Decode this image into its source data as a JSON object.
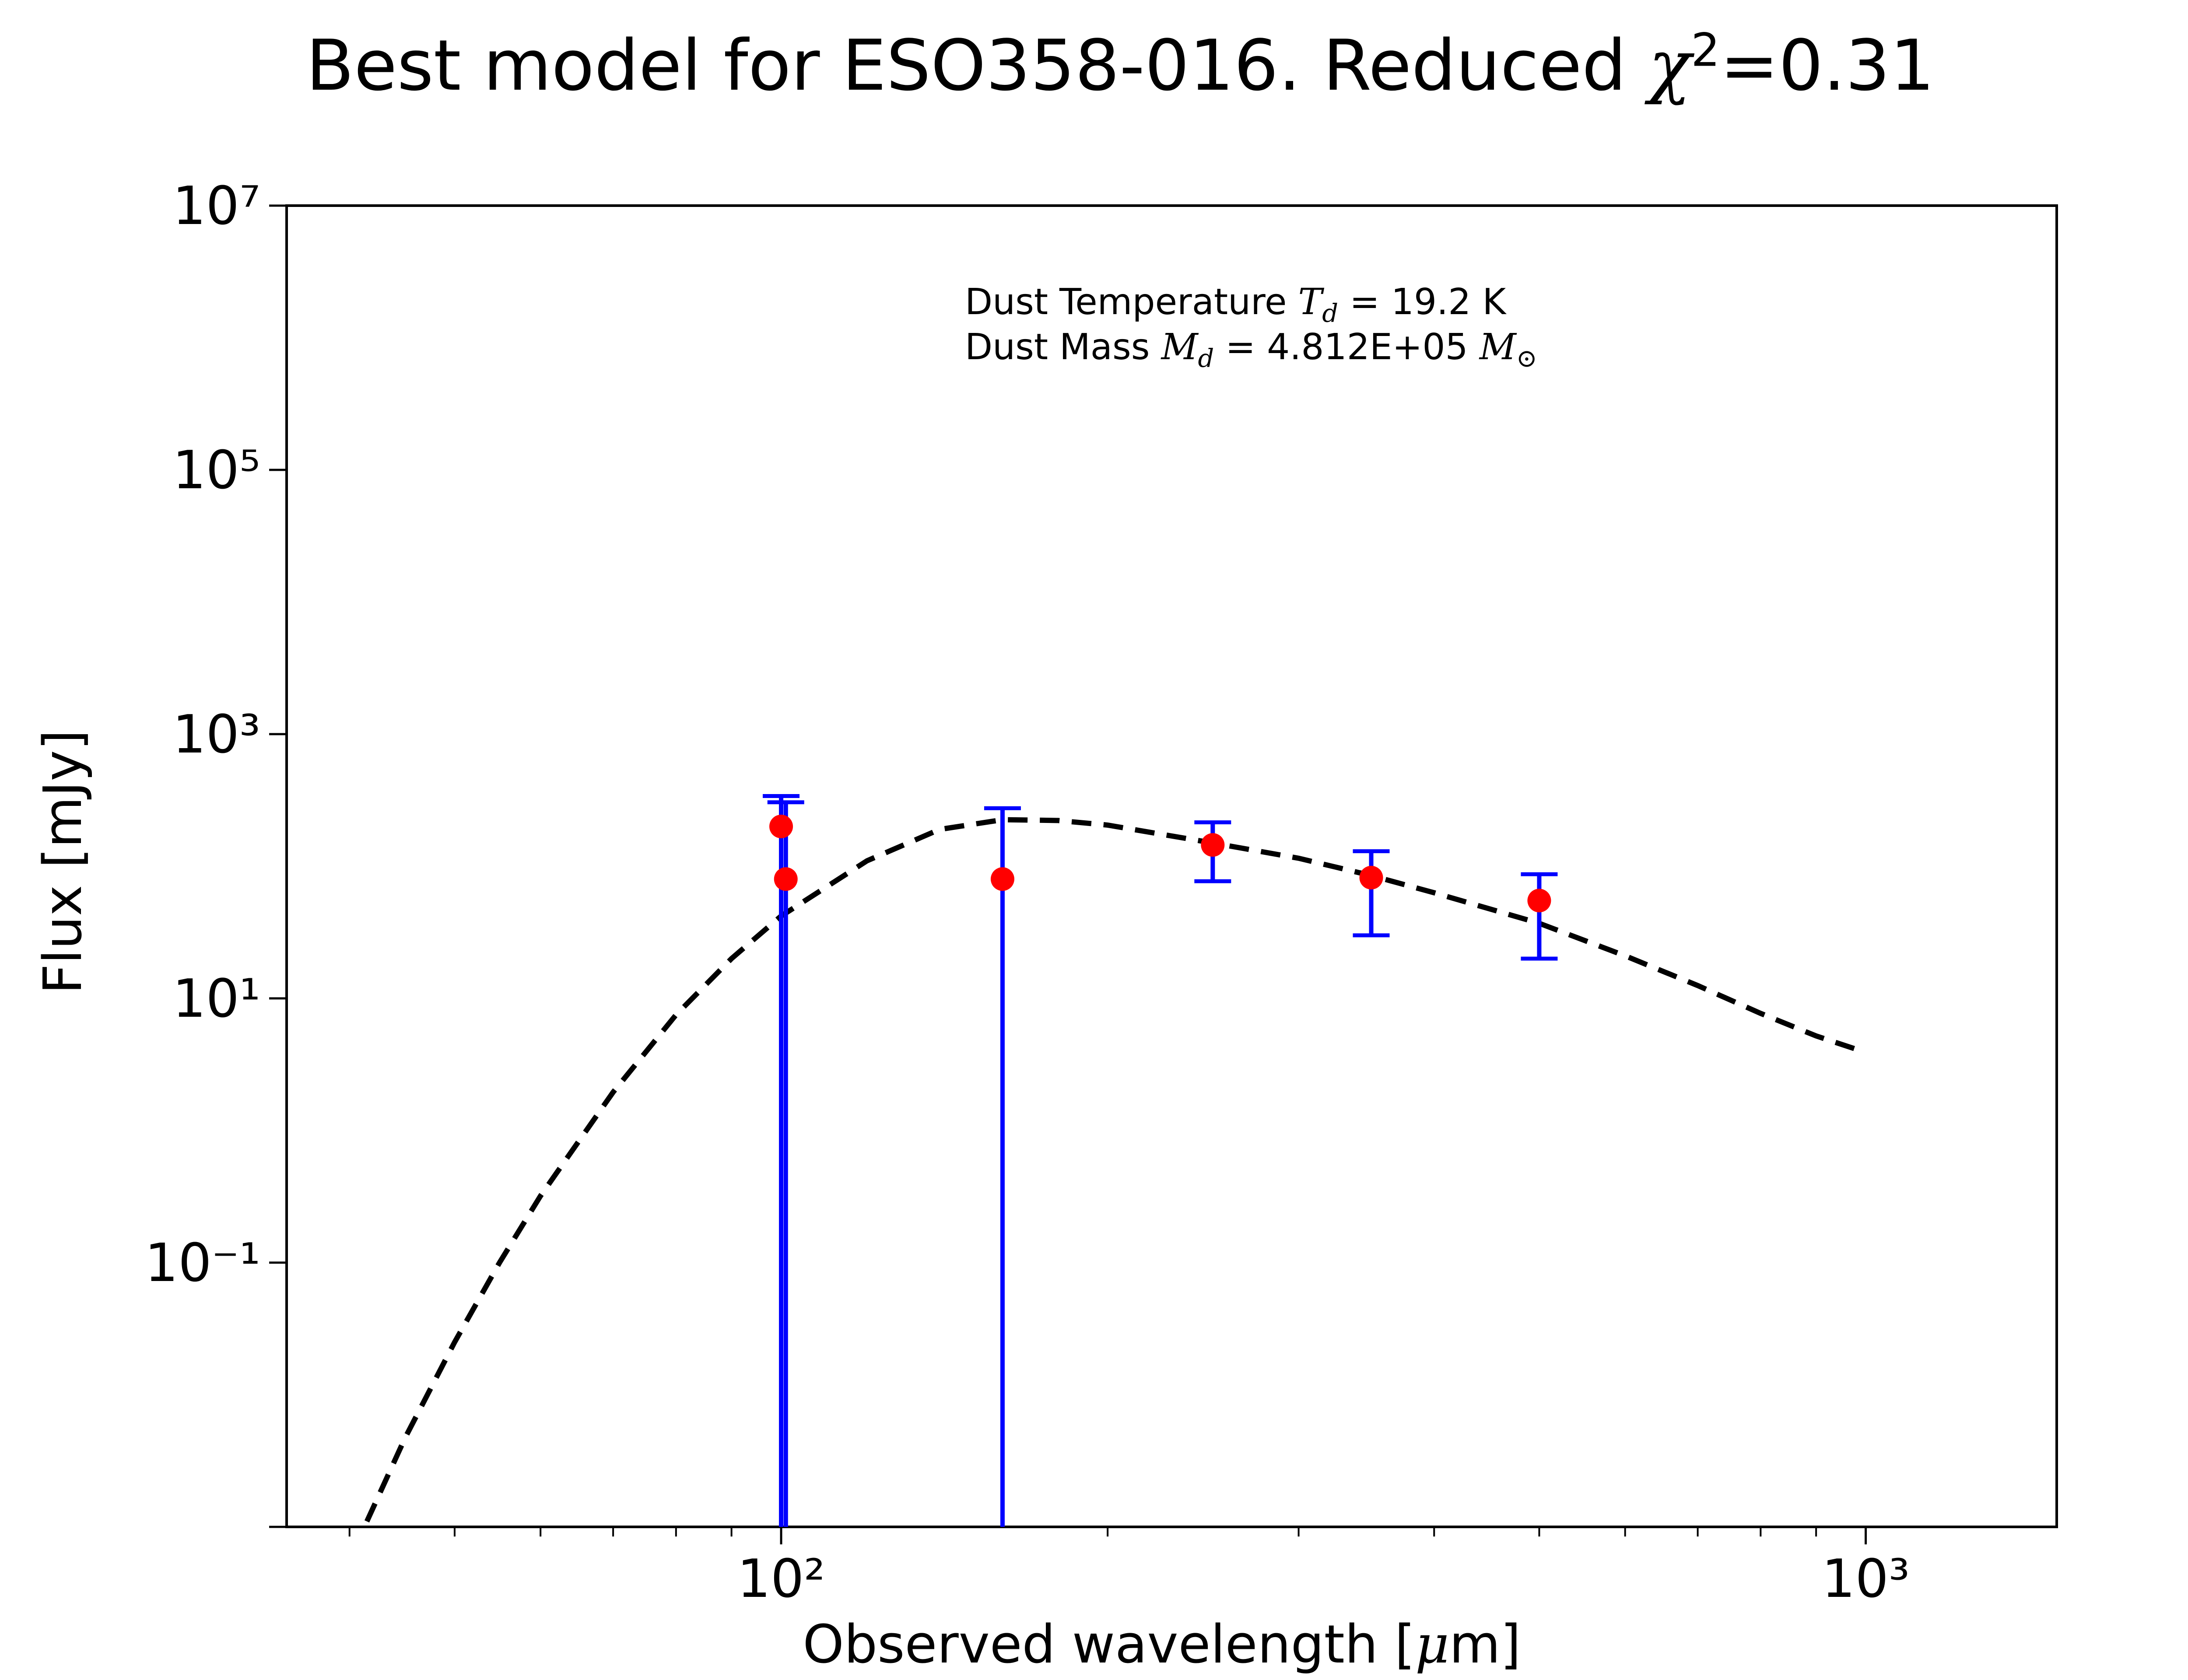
{
  "chart_data": {
    "type": "scatter",
    "title": "Best model for ESO358-016. Reduced χ²=0.31",
    "xlabel": "Observed wavelength [μm]",
    "ylabel": "Flux [mJy]",
    "xscale": "log",
    "yscale": "log",
    "xlim": [
      35,
      1500
    ],
    "ylim": [
      0.001,
      10000000
    ],
    "x_ticks": [
      100,
      1000
    ],
    "x_tick_labels": [
      "10²",
      "10³"
    ],
    "y_ticks": [
      0.1,
      10,
      1000,
      100000,
      10000000
    ],
    "y_tick_labels": [
      "10⁻¹",
      "10¹",
      "10³",
      "10⁵",
      "10⁷"
    ],
    "grid": false,
    "annotation": [
      "Dust Temperature T_d = 19.2 K",
      "Dust Mass M_d = 4.812E+05 M_⊙"
    ],
    "model_curve": {
      "style": "dashed",
      "color": "#000000",
      "x": [
        41.5,
        45,
        50,
        55,
        60,
        70,
        80,
        90,
        100,
        120,
        140,
        160,
        180,
        200,
        250,
        300,
        350,
        400,
        500,
        600,
        700,
        800,
        900,
        1000
      ],
      "y": [
        0.0011,
        0.0047,
        0.025,
        0.1,
        0.32,
        1.95,
        7.5,
        20,
        42,
        110,
        190,
        225,
        222,
        205,
        150,
        115,
        85,
        63,
        37,
        21,
        12.5,
        7.7,
        5.2,
        3.9
      ]
    },
    "observations": {
      "marker_color": "#ff0000",
      "errorbar_color": "#0000ff",
      "points": [
        {
          "x": 100,
          "y": 200,
          "yerr_low": 0.001,
          "yerr_high": 340
        },
        {
          "x": 101,
          "y": 80,
          "yerr_low": 0.001,
          "yerr_high": 305
        },
        {
          "x": 160,
          "y": 80,
          "yerr_low": 0.001,
          "yerr_high": 275
        },
        {
          "x": 250,
          "y": 145,
          "yerr_low": 77,
          "yerr_high": 215
        },
        {
          "x": 350,
          "y": 82,
          "yerr_low": 30,
          "yerr_high": 130
        },
        {
          "x": 500,
          "y": 55,
          "yerr_low": 20,
          "yerr_high": 87
        }
      ]
    }
  }
}
